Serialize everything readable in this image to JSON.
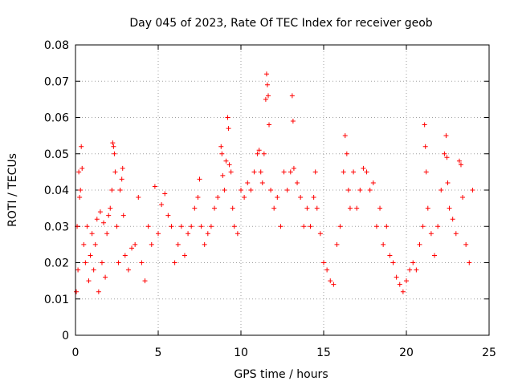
{
  "chart_data": {
    "type": "scatter",
    "title": "Day 045 of 2023, Rate Of TEC Index for receiver geob",
    "xlabel": "GPS time / hours",
    "ylabel": "ROTI / TECUs",
    "xlim": [
      0,
      25
    ],
    "ylim": [
      0,
      0.08
    ],
    "x_ticks": [
      0,
      5,
      10,
      15,
      20,
      25
    ],
    "x_tick_labels": [
      "0",
      "5",
      "10",
      "15",
      "20",
      "25"
    ],
    "y_ticks": [
      0,
      0.01,
      0.02,
      0.03,
      0.04,
      0.05,
      0.06,
      0.07,
      0.08
    ],
    "y_tick_labels": [
      "0",
      "0.01",
      "0.02",
      "0.03",
      "0.04",
      "0.05",
      "0.06",
      "0.07",
      "0.08"
    ],
    "grid": true,
    "marker": "+",
    "marker_color": "#ff0000",
    "series": [
      {
        "values": [
          [
            0.05,
            0.012
          ],
          [
            0.1,
            0.03
          ],
          [
            0.15,
            0.018
          ],
          [
            0.2,
            0.045
          ],
          [
            0.25,
            0.038
          ],
          [
            0.3,
            0.04
          ],
          [
            0.35,
            0.052
          ],
          [
            0.4,
            0.046
          ],
          [
            0.5,
            0.025
          ],
          [
            0.6,
            0.02
          ],
          [
            0.7,
            0.03
          ],
          [
            0.8,
            0.015
          ],
          [
            0.9,
            0.022
          ],
          [
            1.0,
            0.028
          ],
          [
            1.1,
            0.018
          ],
          [
            1.2,
            0.025
          ],
          [
            1.3,
            0.032
          ],
          [
            1.4,
            0.012
          ],
          [
            1.5,
            0.034
          ],
          [
            1.6,
            0.02
          ],
          [
            1.7,
            0.031
          ],
          [
            1.8,
            0.016
          ],
          [
            1.9,
            0.028
          ],
          [
            2.0,
            0.033
          ],
          [
            2.1,
            0.035
          ],
          [
            2.2,
            0.04
          ],
          [
            2.25,
            0.053
          ],
          [
            2.3,
            0.052
          ],
          [
            2.35,
            0.05
          ],
          [
            2.4,
            0.045
          ],
          [
            2.5,
            0.03
          ],
          [
            2.6,
            0.02
          ],
          [
            2.7,
            0.04
          ],
          [
            2.8,
            0.043
          ],
          [
            2.85,
            0.046
          ],
          [
            2.9,
            0.033
          ],
          [
            3.0,
            0.022
          ],
          [
            3.2,
            0.018
          ],
          [
            3.4,
            0.024
          ],
          [
            3.6,
            0.025
          ],
          [
            3.8,
            0.038
          ],
          [
            4.0,
            0.02
          ],
          [
            4.2,
            0.015
          ],
          [
            4.4,
            0.03
          ],
          [
            4.6,
            0.025
          ],
          [
            4.8,
            0.041
          ],
          [
            5.0,
            0.028
          ],
          [
            5.2,
            0.036
          ],
          [
            5.4,
            0.039
          ],
          [
            5.6,
            0.033
          ],
          [
            5.8,
            0.03
          ],
          [
            6.0,
            0.02
          ],
          [
            6.2,
            0.025
          ],
          [
            6.4,
            0.03
          ],
          [
            6.6,
            0.022
          ],
          [
            6.8,
            0.028
          ],
          [
            7.0,
            0.03
          ],
          [
            7.2,
            0.035
          ],
          [
            7.4,
            0.038
          ],
          [
            7.5,
            0.043
          ],
          [
            7.6,
            0.03
          ],
          [
            7.8,
            0.025
          ],
          [
            8.0,
            0.028
          ],
          [
            8.2,
            0.03
          ],
          [
            8.4,
            0.035
          ],
          [
            8.6,
            0.038
          ],
          [
            8.8,
            0.052
          ],
          [
            8.85,
            0.05
          ],
          [
            8.9,
            0.044
          ],
          [
            9.0,
            0.04
          ],
          [
            9.1,
            0.048
          ],
          [
            9.2,
            0.06
          ],
          [
            9.25,
            0.057
          ],
          [
            9.3,
            0.047
          ],
          [
            9.4,
            0.045
          ],
          [
            9.5,
            0.035
          ],
          [
            9.6,
            0.03
          ],
          [
            9.8,
            0.028
          ],
          [
            10.0,
            0.04
          ],
          [
            10.2,
            0.038
          ],
          [
            10.4,
            0.042
          ],
          [
            10.6,
            0.04
          ],
          [
            10.8,
            0.045
          ],
          [
            11.0,
            0.05
          ],
          [
            11.1,
            0.051
          ],
          [
            11.2,
            0.045
          ],
          [
            11.3,
            0.042
          ],
          [
            11.4,
            0.05
          ],
          [
            11.5,
            0.065
          ],
          [
            11.55,
            0.072
          ],
          [
            11.6,
            0.069
          ],
          [
            11.65,
            0.066
          ],
          [
            11.7,
            0.058
          ],
          [
            11.8,
            0.04
          ],
          [
            12.0,
            0.035
          ],
          [
            12.2,
            0.038
          ],
          [
            12.4,
            0.03
          ],
          [
            12.6,
            0.045
          ],
          [
            12.8,
            0.04
          ],
          [
            13.0,
            0.045
          ],
          [
            13.1,
            0.066
          ],
          [
            13.15,
            0.059
          ],
          [
            13.2,
            0.046
          ],
          [
            13.4,
            0.042
          ],
          [
            13.6,
            0.038
          ],
          [
            13.8,
            0.03
          ],
          [
            14.0,
            0.035
          ],
          [
            14.2,
            0.03
          ],
          [
            14.4,
            0.038
          ],
          [
            14.5,
            0.045
          ],
          [
            14.6,
            0.035
          ],
          [
            14.8,
            0.028
          ],
          [
            15.0,
            0.02
          ],
          [
            15.2,
            0.018
          ],
          [
            15.4,
            0.015
          ],
          [
            15.6,
            0.014
          ],
          [
            15.8,
            0.025
          ],
          [
            16.0,
            0.03
          ],
          [
            16.2,
            0.045
          ],
          [
            16.3,
            0.055
          ],
          [
            16.4,
            0.05
          ],
          [
            16.5,
            0.04
          ],
          [
            16.6,
            0.035
          ],
          [
            16.8,
            0.045
          ],
          [
            17.0,
            0.035
          ],
          [
            17.2,
            0.04
          ],
          [
            17.4,
            0.046
          ],
          [
            17.6,
            0.045
          ],
          [
            17.8,
            0.04
          ],
          [
            18.0,
            0.042
          ],
          [
            18.2,
            0.03
          ],
          [
            18.4,
            0.035
          ],
          [
            18.6,
            0.025
          ],
          [
            18.8,
            0.03
          ],
          [
            19.0,
            0.022
          ],
          [
            19.2,
            0.02
          ],
          [
            19.4,
            0.016
          ],
          [
            19.6,
            0.014
          ],
          [
            19.8,
            0.012
          ],
          [
            20.0,
            0.015
          ],
          [
            20.2,
            0.018
          ],
          [
            20.4,
            0.02
          ],
          [
            20.6,
            0.018
          ],
          [
            20.8,
            0.025
          ],
          [
            21.0,
            0.03
          ],
          [
            21.1,
            0.058
          ],
          [
            21.15,
            0.052
          ],
          [
            21.2,
            0.045
          ],
          [
            21.3,
            0.035
          ],
          [
            21.5,
            0.028
          ],
          [
            21.7,
            0.022
          ],
          [
            21.9,
            0.03
          ],
          [
            22.1,
            0.04
          ],
          [
            22.3,
            0.05
          ],
          [
            22.4,
            0.055
          ],
          [
            22.45,
            0.049
          ],
          [
            22.5,
            0.042
          ],
          [
            22.6,
            0.035
          ],
          [
            22.8,
            0.032
          ],
          [
            23.0,
            0.028
          ],
          [
            23.2,
            0.048
          ],
          [
            23.3,
            0.047
          ],
          [
            23.4,
            0.038
          ],
          [
            23.6,
            0.025
          ],
          [
            23.8,
            0.02
          ],
          [
            24.0,
            0.04
          ]
        ]
      }
    ]
  }
}
